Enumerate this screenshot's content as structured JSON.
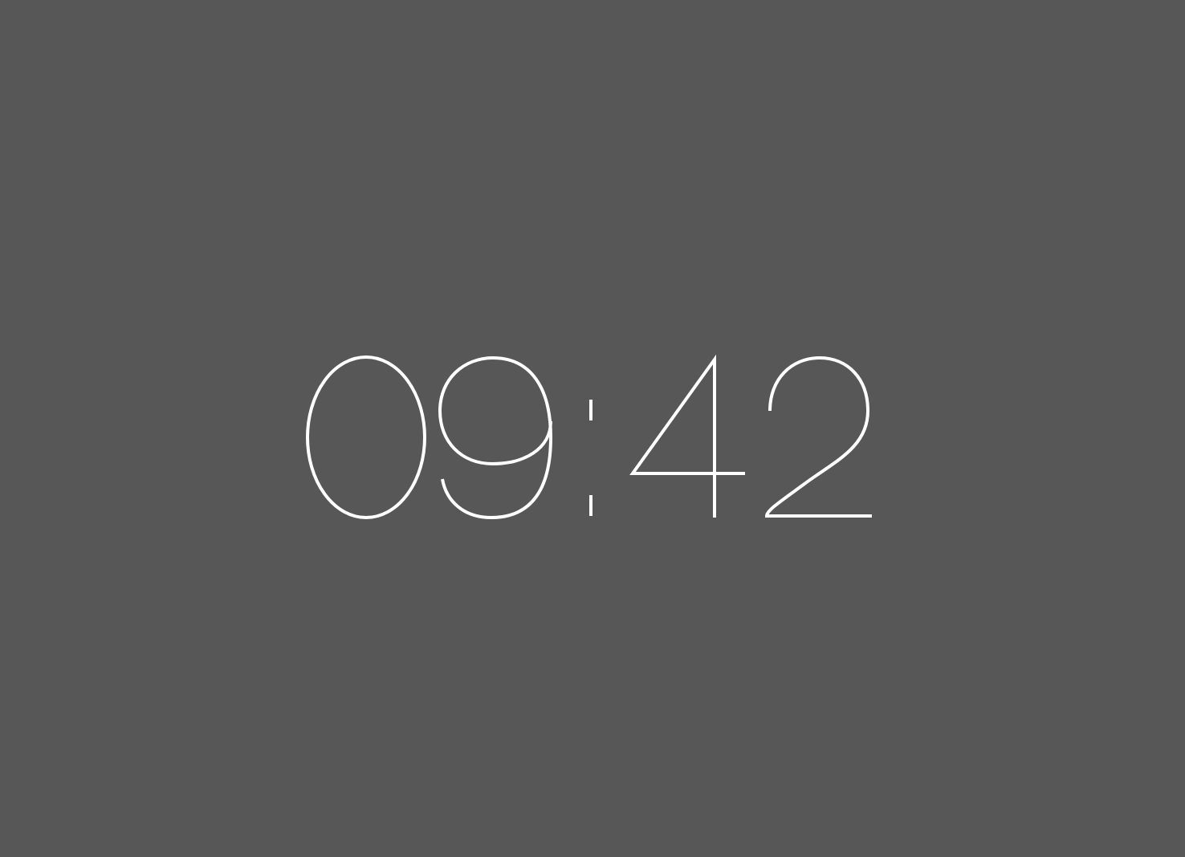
{
  "clock": {
    "time": "09:42",
    "hours": "09",
    "minutes": "42",
    "separator": ":"
  },
  "colors": {
    "background": "#575757",
    "digits": "#ffffff"
  }
}
